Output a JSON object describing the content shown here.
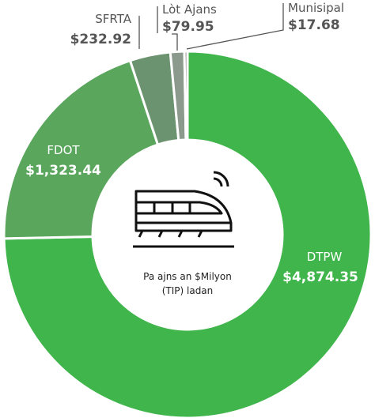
{
  "chart_data": {
    "type": "donut",
    "categories": [
      "DTPW",
      "FDOT",
      "SFRTA",
      "Lòt Ajans",
      "Munisipal"
    ],
    "values": [
      4874.35,
      1323.44,
      232.92,
      79.95,
      17.68
    ],
    "value_labels": [
      "$4,874.35",
      "$1,323.44",
      "$232.92",
      "$79.95",
      "$17.68"
    ],
    "colors": [
      "#3fb54b",
      "#5aa65d",
      "#6b9370",
      "#8c9a8d",
      "#8a8a8a"
    ],
    "center_label": [
      "Pa ajns an  $Milyon",
      "(TIP) ladan"
    ]
  }
}
